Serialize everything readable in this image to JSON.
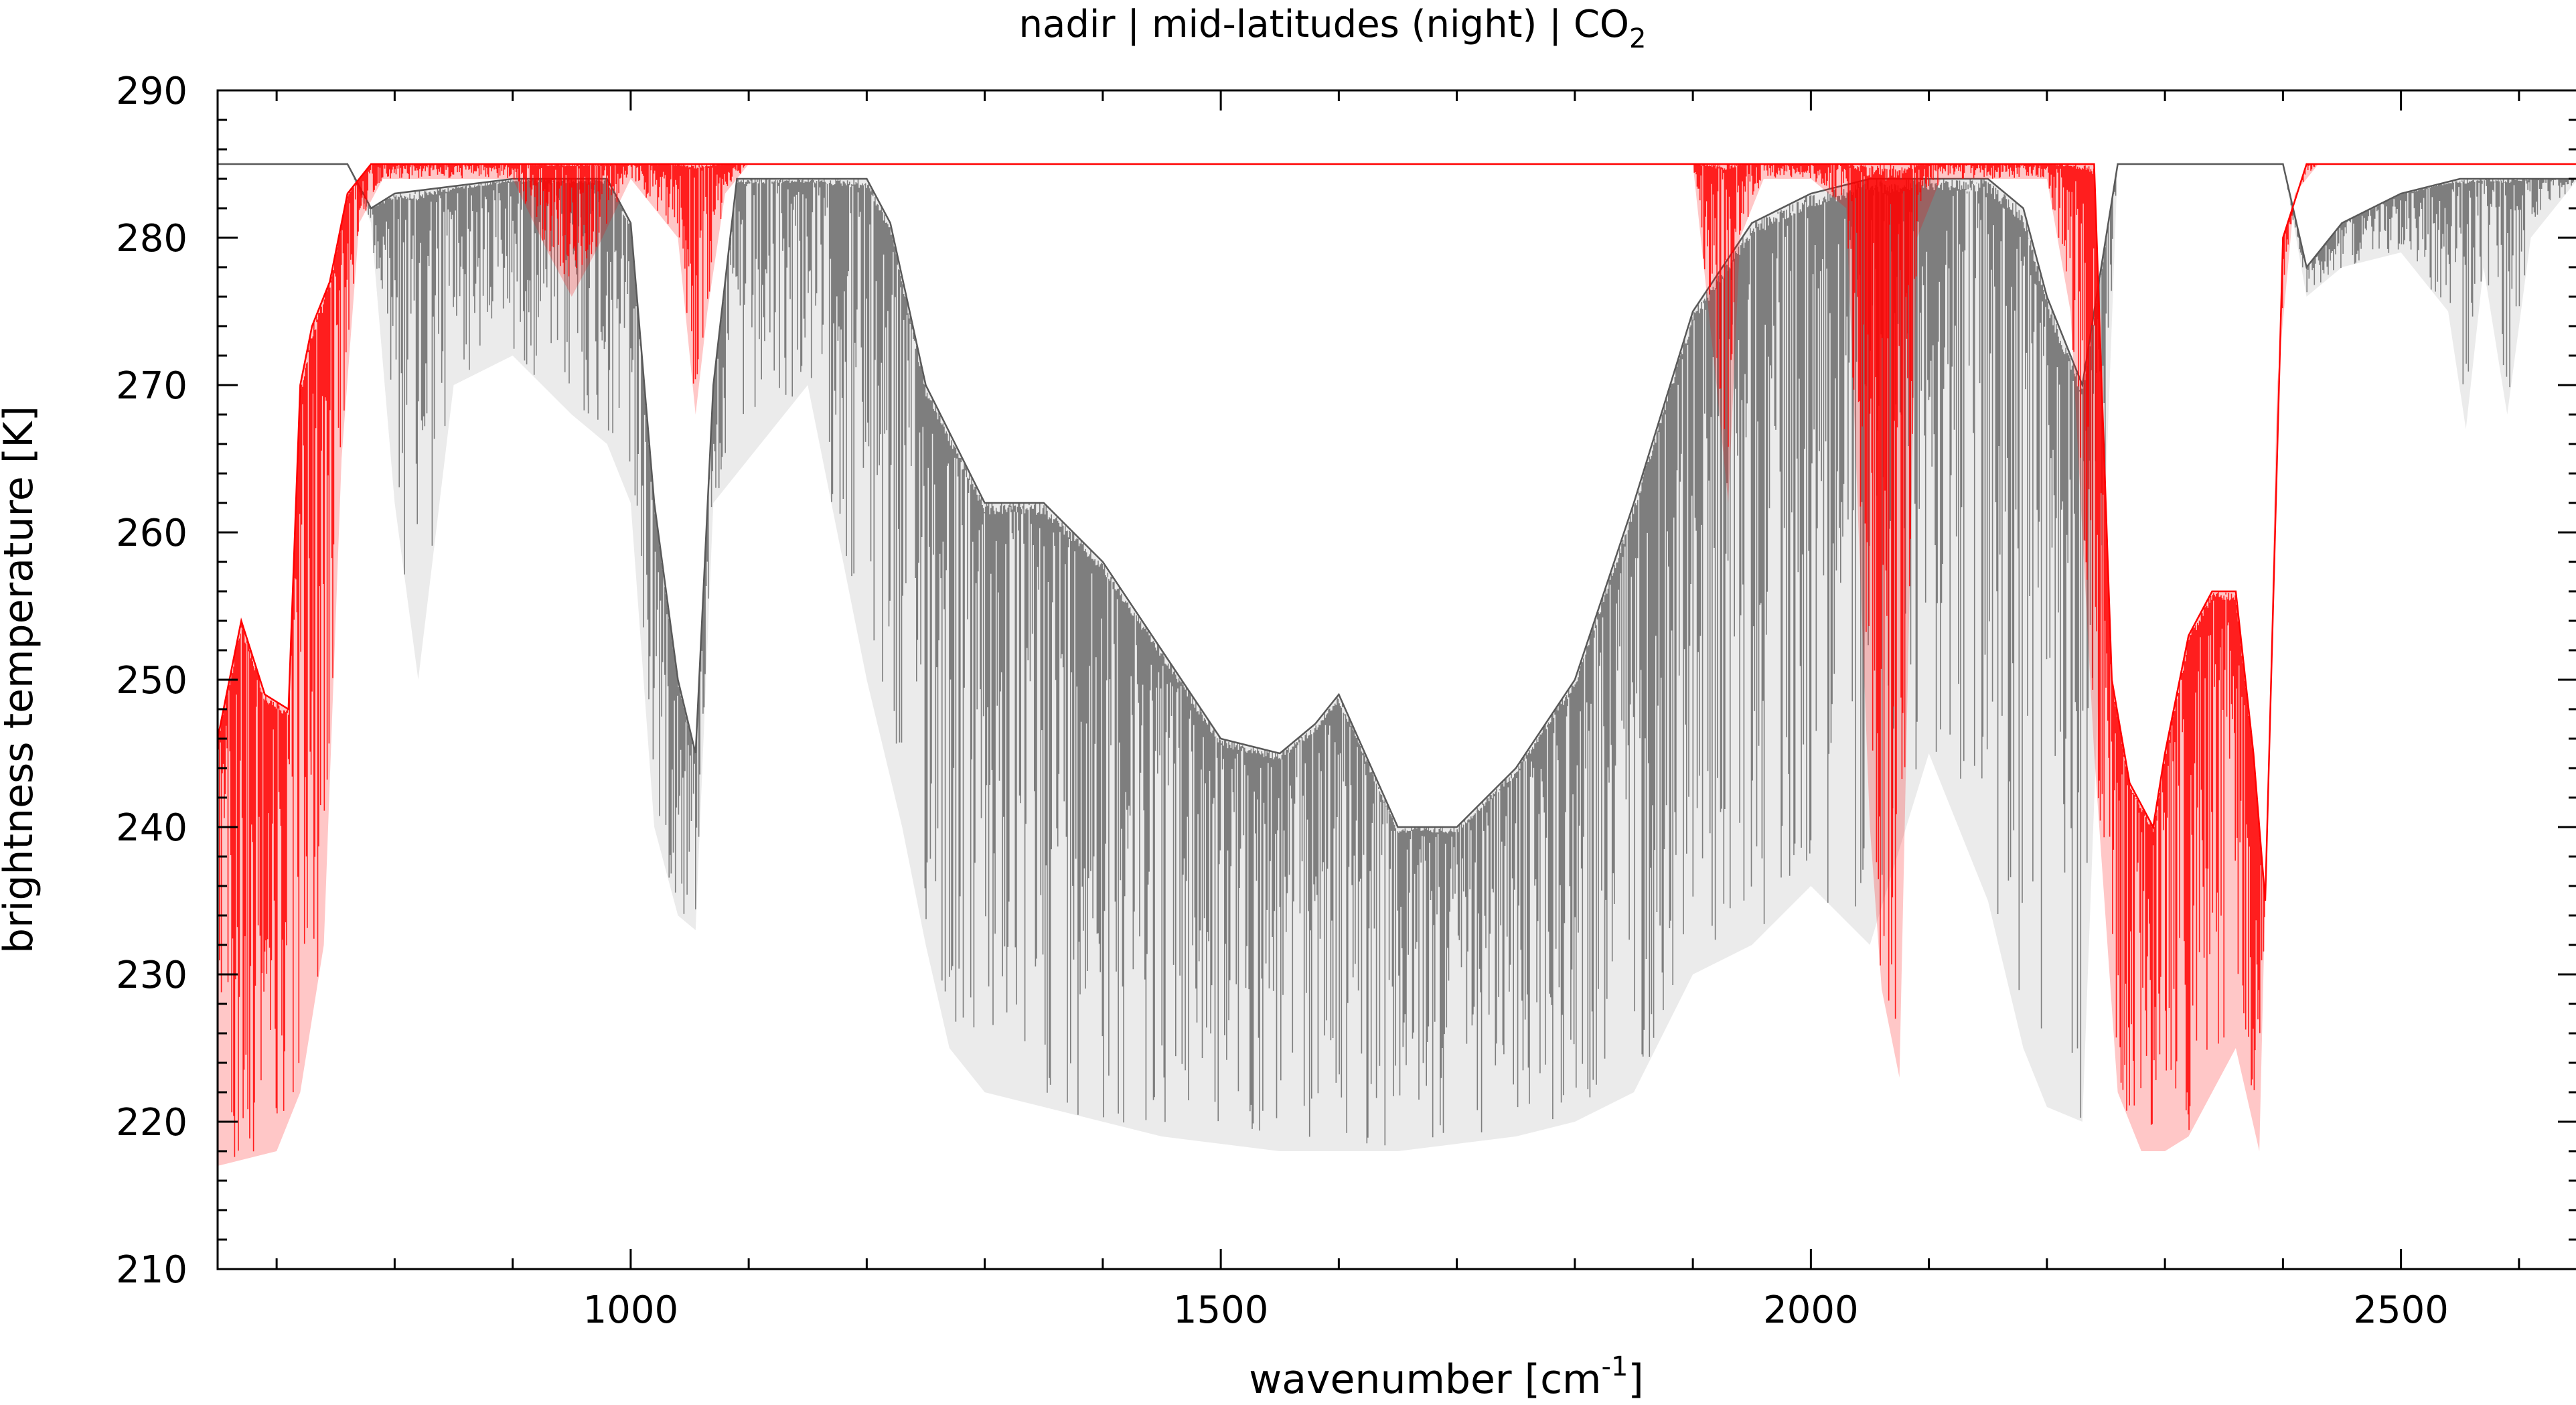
{
  "chart_data": {
    "type": "line",
    "title": "nadir | mid-latitudes (night) | CO",
    "title_subscript": "2",
    "xlabel": "wavenumber [cm",
    "xlabel_superscript": "-1",
    "xlabel_suffix": "]",
    "ylabel": "brightness temperature [K]",
    "xlim": [
      650,
      2650
    ],
    "ylim": [
      210,
      290
    ],
    "grid": false,
    "legend": "none",
    "xticks": [
      1000,
      1500,
      2000,
      2500
    ],
    "xtick_labels": [
      "1000",
      "1500",
      "2000",
      "2500"
    ],
    "yticks": [
      210,
      220,
      230,
      240,
      250,
      260,
      270,
      280,
      290
    ],
    "ytick_labels": [
      "210",
      "220",
      "230",
      "240",
      "250",
      "260",
      "270",
      "280",
      "290"
    ],
    "series": [
      {
        "color": "#595959",
        "envelope_lower": [
          [
            650,
            285
          ],
          [
            760,
            285
          ],
          [
            780,
            281
          ],
          [
            800,
            262
          ],
          [
            820,
            250
          ],
          [
            850,
            270
          ],
          [
            900,
            272
          ],
          [
            950,
            268
          ],
          [
            980,
            266
          ],
          [
            1000,
            262
          ],
          [
            1020,
            240
          ],
          [
            1040,
            234
          ],
          [
            1055,
            233
          ],
          [
            1070,
            262
          ],
          [
            1100,
            265
          ],
          [
            1150,
            270
          ],
          [
            1200,
            250
          ],
          [
            1230,
            240
          ],
          [
            1250,
            232
          ],
          [
            1270,
            225
          ],
          [
            1300,
            222
          ],
          [
            1350,
            221
          ],
          [
            1400,
            220
          ],
          [
            1450,
            219
          ],
          [
            1500,
            218.5
          ],
          [
            1550,
            218
          ],
          [
            1600,
            218
          ],
          [
            1650,
            218
          ],
          [
            1700,
            218.5
          ],
          [
            1750,
            219
          ],
          [
            1800,
            220
          ],
          [
            1850,
            222
          ],
          [
            1900,
            230
          ],
          [
            1950,
            232
          ],
          [
            2000,
            236
          ],
          [
            2050,
            232
          ],
          [
            2100,
            245
          ],
          [
            2150,
            235
          ],
          [
            2180,
            225
          ],
          [
            2200,
            221
          ],
          [
            2230,
            220
          ],
          [
            2260,
            285
          ],
          [
            2400,
            285
          ],
          [
            2420,
            276
          ],
          [
            2450,
            278
          ],
          [
            2500,
            279
          ],
          [
            2540,
            275
          ],
          [
            2555,
            267
          ],
          [
            2570,
            278
          ],
          [
            2590,
            268
          ],
          [
            2610,
            280
          ],
          [
            2650,
            284
          ]
        ],
        "envelope_upper": [
          [
            650,
            285
          ],
          [
            760,
            285
          ],
          [
            780,
            282
          ],
          [
            800,
            283
          ],
          [
            900,
            284
          ],
          [
            980,
            284
          ],
          [
            1000,
            281
          ],
          [
            1020,
            262
          ],
          [
            1040,
            250
          ],
          [
            1055,
            245
          ],
          [
            1070,
            270
          ],
          [
            1090,
            284
          ],
          [
            1150,
            284
          ],
          [
            1200,
            284
          ],
          [
            1220,
            281
          ],
          [
            1250,
            270
          ],
          [
            1300,
            262
          ],
          [
            1350,
            262
          ],
          [
            1400,
            258
          ],
          [
            1450,
            252
          ],
          [
            1500,
            246
          ],
          [
            1550,
            245
          ],
          [
            1580,
            247
          ],
          [
            1600,
            249
          ],
          [
            1650,
            240
          ],
          [
            1700,
            240
          ],
          [
            1750,
            244
          ],
          [
            1800,
            250
          ],
          [
            1850,
            262
          ],
          [
            1900,
            275
          ],
          [
            1950,
            281
          ],
          [
            2000,
            283
          ],
          [
            2050,
            284
          ],
          [
            2100,
            284
          ],
          [
            2150,
            284
          ],
          [
            2180,
            282
          ],
          [
            2200,
            276
          ],
          [
            2230,
            270
          ],
          [
            2260,
            285
          ],
          [
            2400,
            285
          ],
          [
            2420,
            278
          ],
          [
            2450,
            281
          ],
          [
            2500,
            283
          ],
          [
            2550,
            284
          ],
          [
            2600,
            284
          ],
          [
            2650,
            284
          ]
        ]
      },
      {
        "color": "#ff0000",
        "envelope_lower": [
          [
            650,
            217
          ],
          [
            700,
            218
          ],
          [
            720,
            222
          ],
          [
            740,
            232
          ],
          [
            755,
            265
          ],
          [
            770,
            281
          ],
          [
            790,
            284
          ],
          [
            900,
            284
          ],
          [
            930,
            279
          ],
          [
            950,
            276
          ],
          [
            970,
            279
          ],
          [
            1000,
            284
          ],
          [
            1040,
            280
          ],
          [
            1055,
            268
          ],
          [
            1065,
            275
          ],
          [
            1080,
            283
          ],
          [
            1100,
            285
          ],
          [
            1900,
            285
          ],
          [
            1920,
            270
          ],
          [
            1930,
            262
          ],
          [
            1940,
            280
          ],
          [
            1960,
            284
          ],
          [
            2000,
            284
          ],
          [
            2030,
            282
          ],
          [
            2050,
            240
          ],
          [
            2060,
            229
          ],
          [
            2075,
            223
          ],
          [
            2090,
            280
          ],
          [
            2110,
            284
          ],
          [
            2200,
            284
          ],
          [
            2220,
            275
          ],
          [
            2240,
            245
          ],
          [
            2260,
            222
          ],
          [
            2280,
            218
          ],
          [
            2300,
            218
          ],
          [
            2320,
            219
          ],
          [
            2340,
            222
          ],
          [
            2360,
            225
          ],
          [
            2380,
            218
          ],
          [
            2395,
            270
          ],
          [
            2410,
            283
          ],
          [
            2430,
            285
          ],
          [
            2650,
            285
          ]
        ],
        "envelope_upper": [
          [
            650,
            246
          ],
          [
            670,
            254
          ],
          [
            690,
            249
          ],
          [
            710,
            248
          ],
          [
            720,
            270
          ],
          [
            730,
            274
          ],
          [
            745,
            277
          ],
          [
            760,
            283
          ],
          [
            780,
            285
          ],
          [
            2240,
            285
          ],
          [
            2255,
            250
          ],
          [
            2270,
            243
          ],
          [
            2290,
            240
          ],
          [
            2300,
            245
          ],
          [
            2320,
            253
          ],
          [
            2340,
            256
          ],
          [
            2360,
            256
          ],
          [
            2375,
            245
          ],
          [
            2385,
            235
          ],
          [
            2400,
            280
          ],
          [
            2420,
            285
          ],
          [
            2650,
            285
          ]
        ]
      }
    ]
  }
}
